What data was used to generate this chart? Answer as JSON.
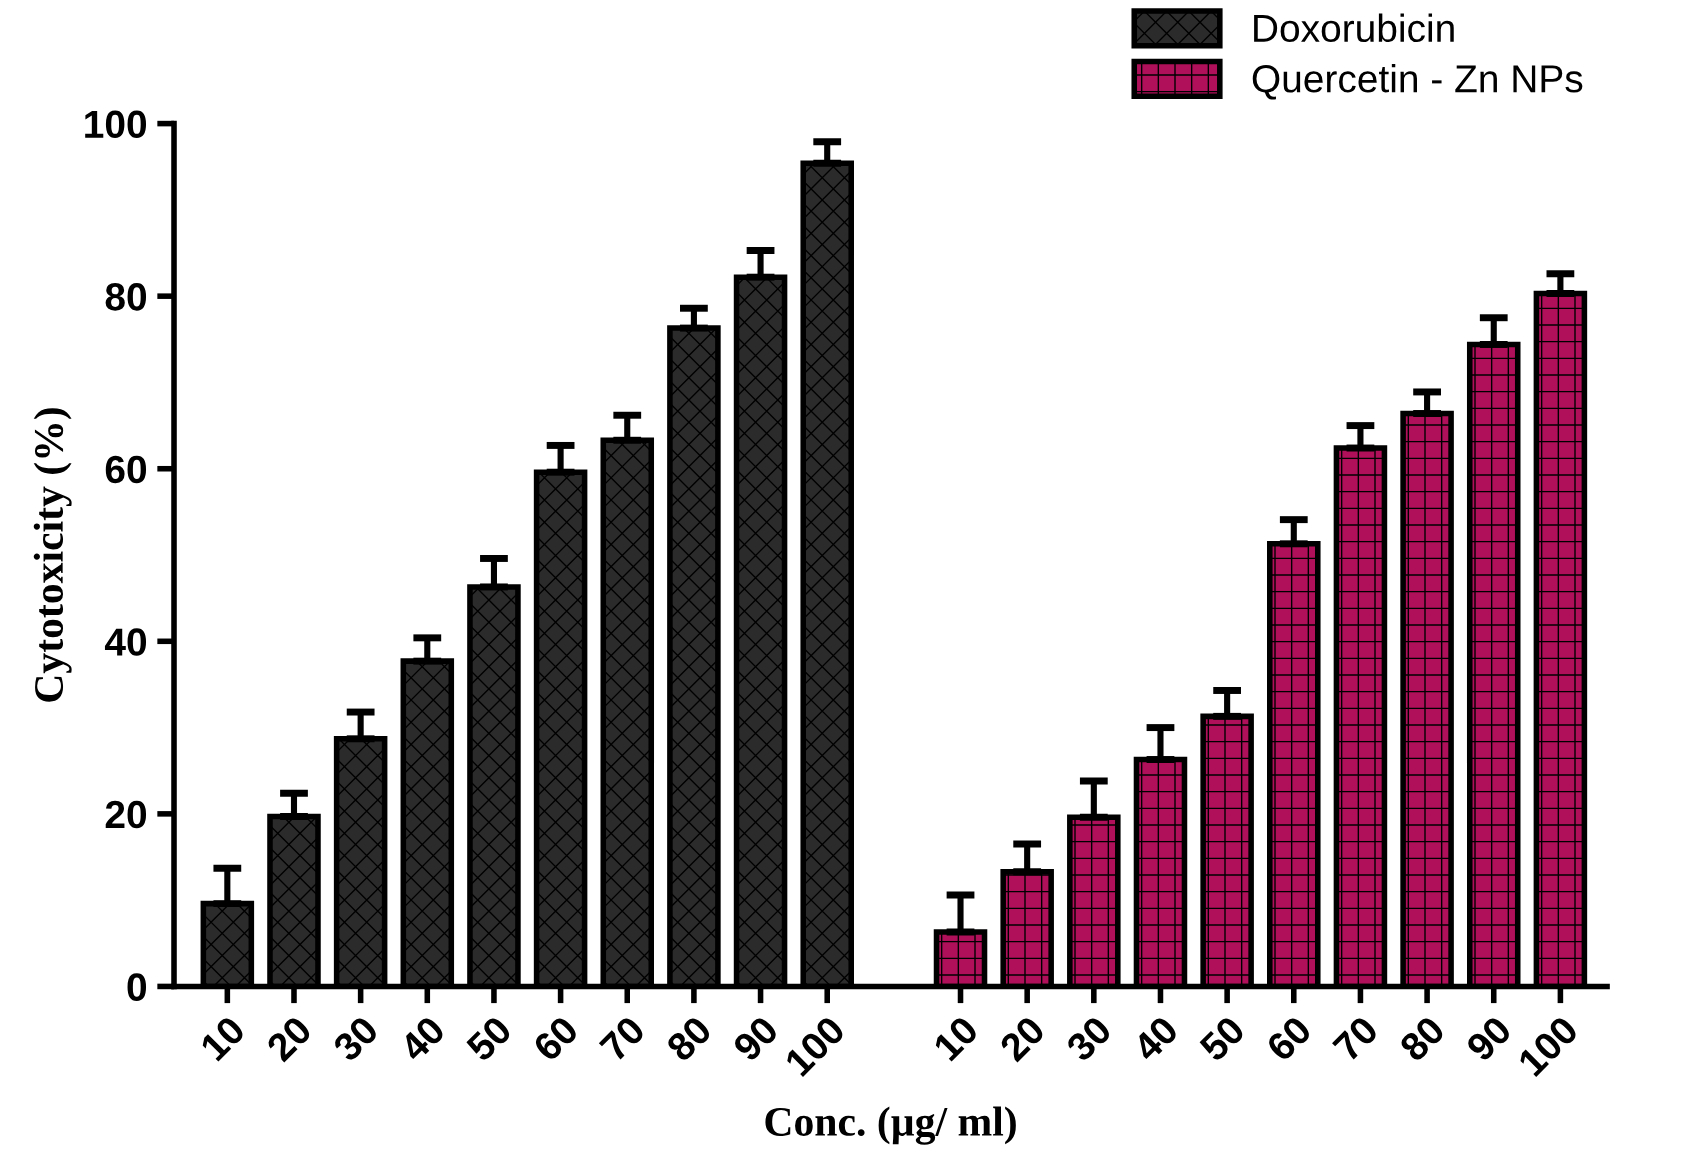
{
  "chart_data": {
    "type": "bar",
    "xlabel": "Conc. (µg/ ml)",
    "ylabel": "Cytotoxicity (%)",
    "categories": [
      "10",
      "20",
      "30",
      "40",
      "50",
      "60",
      "70",
      "80",
      "90",
      "100",
      null,
      "10",
      "20",
      "30",
      "40",
      "50",
      "60",
      "70",
      "80",
      "90",
      "100"
    ],
    "series": [
      {
        "name": "Doxorubicin",
        "color": "#2b2b2b",
        "values": [
          9.6,
          19.7,
          28.7,
          37.7,
          46.3,
          59.6,
          63.3,
          76.3,
          82.2,
          95.4,
          null,
          null,
          null,
          null,
          null,
          null,
          null,
          null,
          null,
          null,
          null
        ],
        "errors": [
          4.1,
          2.7,
          3.1,
          2.7,
          3.3,
          3.1,
          2.9,
          2.3,
          3.1,
          2.5,
          null,
          null,
          null,
          null,
          null,
          null,
          null,
          null,
          null,
          null,
          null
        ]
      },
      {
        "name": "Quercetin - Zn NPs",
        "color": "#b0105a",
        "values": [
          null,
          null,
          null,
          null,
          null,
          null,
          null,
          null,
          null,
          null,
          null,
          6.3,
          13.3,
          19.6,
          26.3,
          31.3,
          51.3,
          62.4,
          66.4,
          74.4,
          80.3
        ],
        "errors": [
          null,
          null,
          null,
          null,
          null,
          null,
          null,
          null,
          null,
          null,
          null,
          4.3,
          3.2,
          4.2,
          3.7,
          3.0,
          2.8,
          2.6,
          2.5,
          3.1,
          2.3
        ]
      }
    ],
    "ylim": [
      0,
      100
    ],
    "yticks": [
      0,
      20,
      40,
      60,
      80,
      100
    ],
    "grid": false,
    "legend": "top right"
  }
}
